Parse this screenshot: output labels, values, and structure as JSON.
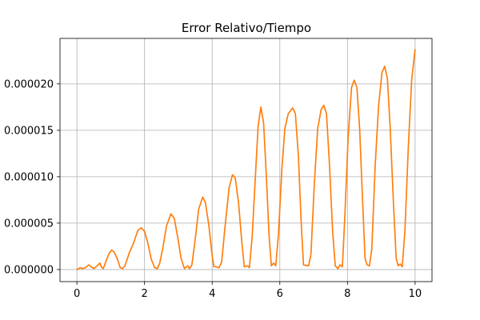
{
  "chart_data": {
    "type": "line",
    "title": "Error Relativo/Tiempo",
    "xlabel": "",
    "ylabel": "",
    "xlim": [
      -0.5,
      10.5
    ],
    "ylim": [
      -1.3e-06,
      2.49e-05
    ],
    "grid": true,
    "xticks": [
      0,
      2,
      4,
      6,
      8,
      10
    ],
    "xtick_labels": [
      "0",
      "2",
      "4",
      "6",
      "8",
      "10"
    ],
    "yticks": [
      0,
      5e-06,
      1e-05,
      1.5e-05,
      2e-05
    ],
    "ytick_labels": [
      "0.000000",
      "0.000005",
      "0.000010",
      "0.000015",
      "0.000020"
    ],
    "series_color": "#ff7f0e",
    "series": [
      {
        "points": [
          [
            0.0,
            0.0
          ],
          [
            0.1,
            2e-07
          ],
          [
            0.15,
            1e-07
          ],
          [
            0.25,
            2e-07
          ],
          [
            0.35,
            5e-07
          ],
          [
            0.42,
            3e-07
          ],
          [
            0.5,
            1e-07
          ],
          [
            0.6,
            4e-07
          ],
          [
            0.68,
            7e-07
          ],
          [
            0.72,
            3e-07
          ],
          [
            0.78,
            1e-07
          ],
          [
            0.86,
            9e-07
          ],
          [
            0.96,
            1.8e-06
          ],
          [
            1.03,
            2.1e-06
          ],
          [
            1.1,
            1.9e-06
          ],
          [
            1.2,
            1.1e-06
          ],
          [
            1.28,
            2e-07
          ],
          [
            1.35,
            1e-07
          ],
          [
            1.42,
            4e-07
          ],
          [
            1.55,
            1.8e-06
          ],
          [
            1.68,
            2.9e-06
          ],
          [
            1.8,
            4.2e-06
          ],
          [
            1.9,
            4.5e-06
          ],
          [
            2.0,
            4.1e-06
          ],
          [
            2.1,
            2.8e-06
          ],
          [
            2.2,
            1.1e-06
          ],
          [
            2.3,
            2e-07
          ],
          [
            2.38,
            1e-07
          ],
          [
            2.45,
            7e-07
          ],
          [
            2.55,
            2.5e-06
          ],
          [
            2.65,
            4.7e-06
          ],
          [
            2.78,
            6e-06
          ],
          [
            2.88,
            5.5e-06
          ],
          [
            2.98,
            3.5e-06
          ],
          [
            3.08,
            1.2e-06
          ],
          [
            3.18,
            1e-07
          ],
          [
            3.28,
            4e-07
          ],
          [
            3.33,
            1e-07
          ],
          [
            3.4,
            5e-07
          ],
          [
            3.5,
            3.3e-06
          ],
          [
            3.6,
            6.5e-06
          ],
          [
            3.72,
            7.8e-06
          ],
          [
            3.8,
            7.2e-06
          ],
          [
            3.9,
            4.8e-06
          ],
          [
            4.0,
            1.5e-06
          ],
          [
            4.05,
            3e-07
          ],
          [
            4.12,
            3e-07
          ],
          [
            4.2,
            2e-07
          ],
          [
            4.28,
            8e-07
          ],
          [
            4.38,
            4.6e-06
          ],
          [
            4.5,
            8.8e-06
          ],
          [
            4.6,
            1.02e-05
          ],
          [
            4.68,
            9.9e-06
          ],
          [
            4.78,
            7.2e-06
          ],
          [
            4.88,
            2.8e-06
          ],
          [
            4.95,
            3e-07
          ],
          [
            5.05,
            4e-07
          ],
          [
            5.1,
            2e-07
          ],
          [
            5.18,
            3.4e-06
          ],
          [
            5.28,
            1.02e-05
          ],
          [
            5.36,
            1.55e-05
          ],
          [
            5.44,
            1.75e-05
          ],
          [
            5.52,
            1.58e-05
          ],
          [
            5.6,
            1.02e-05
          ],
          [
            5.68,
            3.8e-06
          ],
          [
            5.75,
            4e-07
          ],
          [
            5.82,
            7e-07
          ],
          [
            5.88,
            4e-07
          ],
          [
            5.96,
            3.8e-06
          ],
          [
            6.06,
            1.08e-05
          ],
          [
            6.15,
            1.52e-05
          ],
          [
            6.25,
            1.68e-05
          ],
          [
            6.38,
            1.74e-05
          ],
          [
            6.46,
            1.68e-05
          ],
          [
            6.55,
            1.22e-05
          ],
          [
            6.63,
            5.2e-06
          ],
          [
            6.7,
            5e-07
          ],
          [
            6.85,
            4e-07
          ],
          [
            6.92,
            1.6e-06
          ],
          [
            7.02,
            9.2e-06
          ],
          [
            7.12,
            1.52e-05
          ],
          [
            7.22,
            1.72e-05
          ],
          [
            7.3,
            1.77e-05
          ],
          [
            7.38,
            1.68e-05
          ],
          [
            7.47,
            1.12e-05
          ],
          [
            7.56,
            4.2e-06
          ],
          [
            7.64,
            4e-07
          ],
          [
            7.72,
            1e-07
          ],
          [
            7.78,
            5e-07
          ],
          [
            7.85,
            3e-07
          ],
          [
            7.92,
            5.5e-06
          ],
          [
            8.02,
            1.42e-05
          ],
          [
            8.12,
            1.96e-05
          ],
          [
            8.2,
            2.04e-05
          ],
          [
            8.28,
            1.96e-05
          ],
          [
            8.36,
            1.52e-05
          ],
          [
            8.45,
            7.2e-06
          ],
          [
            8.52,
            1.2e-06
          ],
          [
            8.58,
            5e-07
          ],
          [
            8.65,
            4e-07
          ],
          [
            8.72,
            2.2e-06
          ],
          [
            8.82,
            1.12e-05
          ],
          [
            8.92,
            1.76e-05
          ],
          [
            9.02,
            2.12e-05
          ],
          [
            9.1,
            2.19e-05
          ],
          [
            9.18,
            2.06e-05
          ],
          [
            9.26,
            1.55e-05
          ],
          [
            9.36,
            7.2e-06
          ],
          [
            9.44,
            1.2e-06
          ],
          [
            9.5,
            4e-07
          ],
          [
            9.56,
            6e-07
          ],
          [
            9.62,
            3e-07
          ],
          [
            9.7,
            4.2e-06
          ],
          [
            9.8,
            1.32e-05
          ],
          [
            9.9,
            2.05e-05
          ],
          [
            10.0,
            2.37e-05
          ]
        ]
      }
    ]
  }
}
